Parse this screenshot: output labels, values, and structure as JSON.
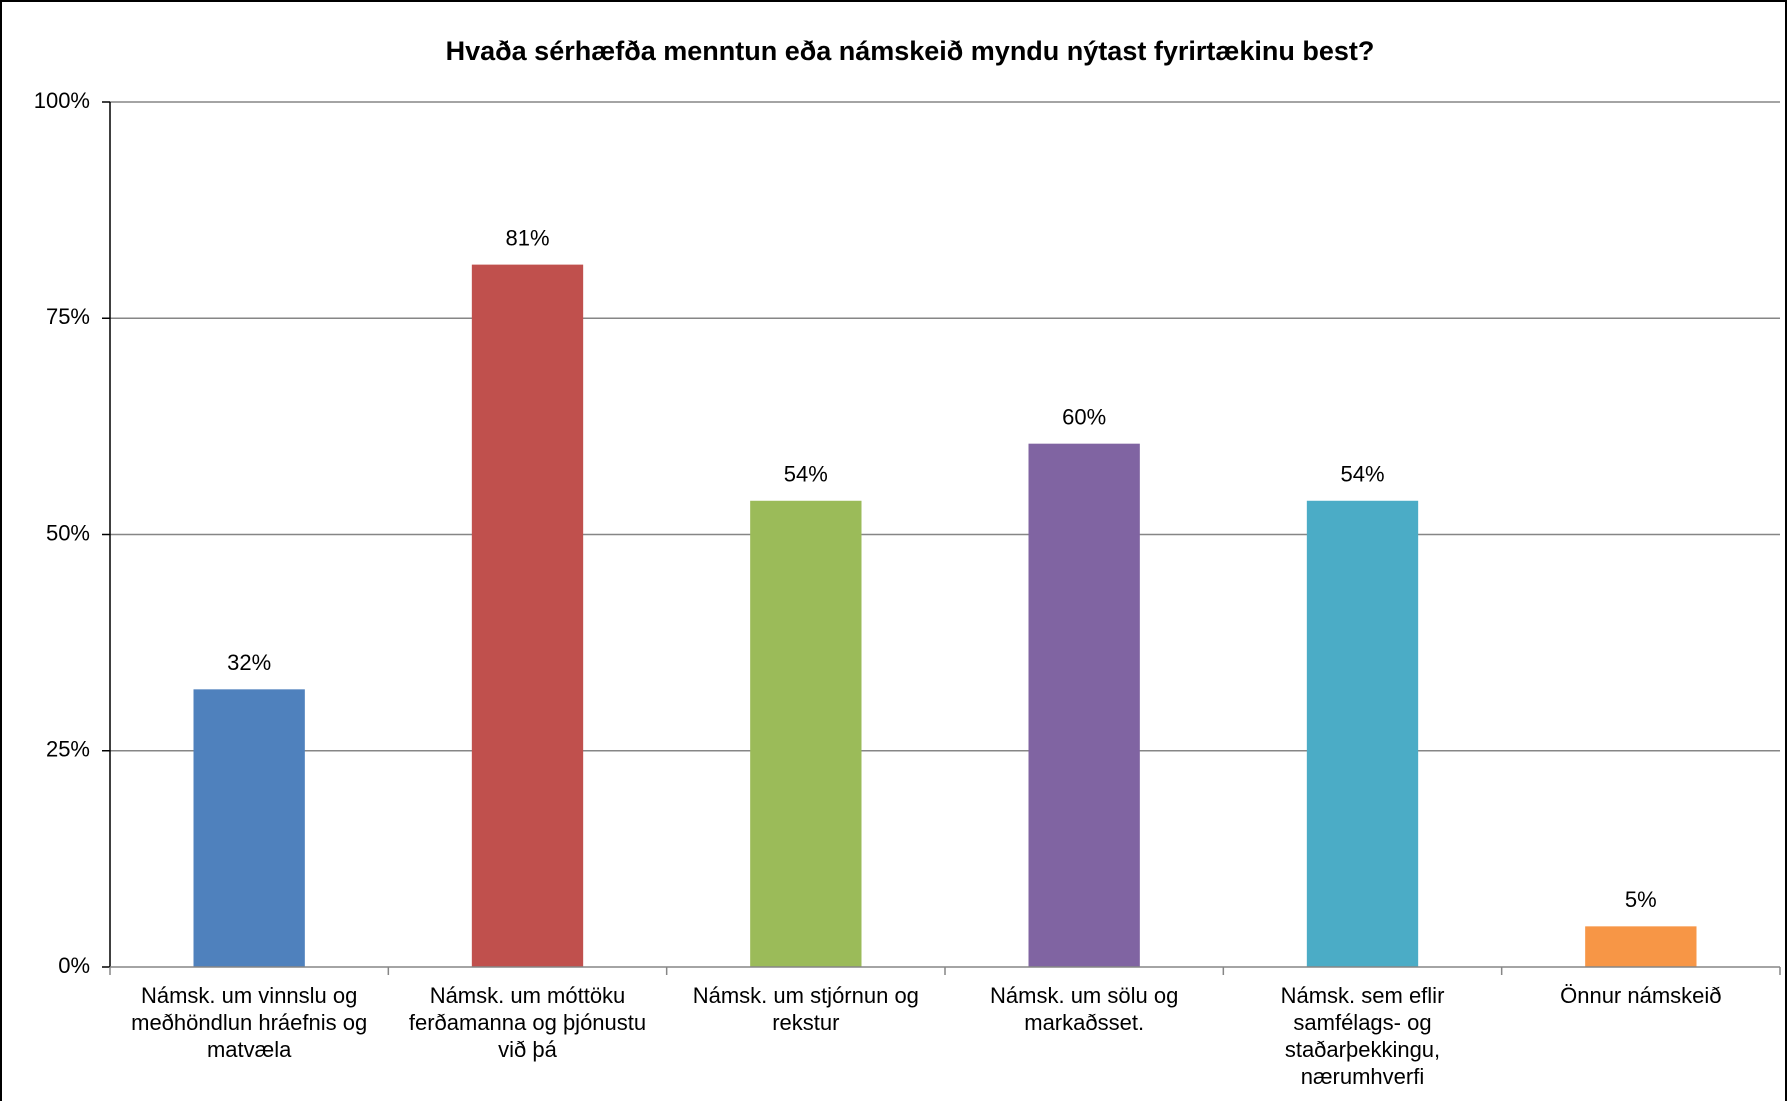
{
  "chart_data": {
    "type": "bar",
    "title": "Hvaða sérhæfða menntun eða námskeið myndu nýtast fyrirtækinu best?",
    "categories": [
      "Námsk. um vinnslu og meðhöndlun hráefnis og matvæla",
      "Námsk. um móttöku ferðamanna og þjónustu við þá",
      "Námsk. um stjórnun og rekstur",
      "Námsk. um sölu og markaðsset.",
      "Námsk. sem eflir samfélags- og staðarþekkingu, nærumhverfi",
      "Önnur námskeið"
    ],
    "values": [
      32.1,
      81.2,
      53.9,
      60.5,
      53.9,
      4.7
    ],
    "value_labels": [
      "32%",
      "81%",
      "54%",
      "60%",
      "54%",
      "5%"
    ],
    "colors": [
      "#4f81bd",
      "#c0504d",
      "#9bbb59",
      "#8064a2",
      "#4bacc6",
      "#f79646"
    ],
    "ylim": [
      0,
      100
    ],
    "yticks": [
      {
        "value": 0,
        "label": "0%"
      },
      {
        "value": 25,
        "label": "25%"
      },
      {
        "value": 50,
        "label": "50%"
      },
      {
        "value": 75,
        "label": "75%"
      },
      {
        "value": 100,
        "label": "100%"
      }
    ],
    "grid": true
  }
}
